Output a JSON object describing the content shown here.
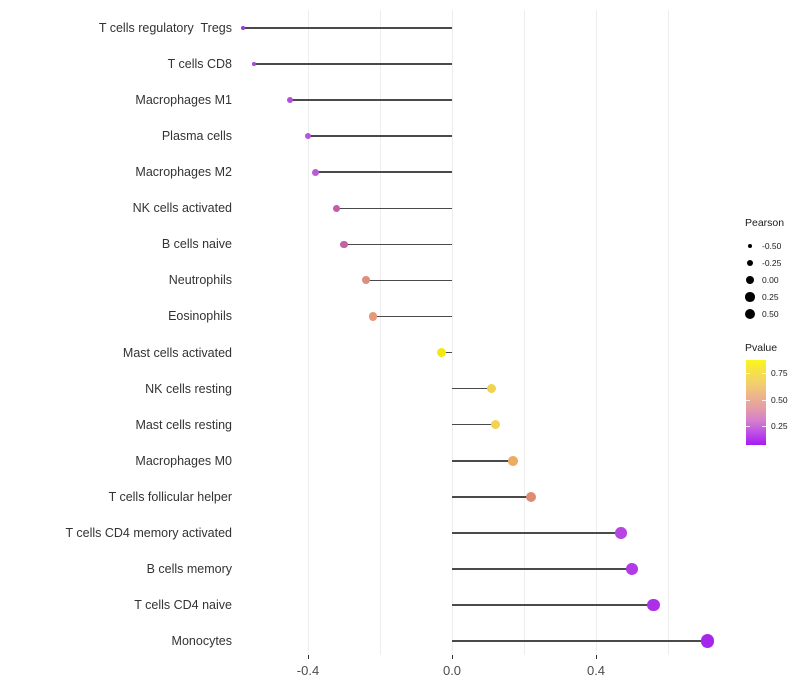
{
  "chart_data": {
    "type": "lollipop",
    "title": "",
    "xlabel": "",
    "ylabel": "",
    "xlim": [
      -0.62,
      0.78
    ],
    "grid": "vertical-light",
    "legend_position": "right",
    "x_axis": {
      "ticks": [
        {
          "v": -0.4,
          "label": "-0.4"
        },
        {
          "v": 0.0,
          "label": "0.0"
        },
        {
          "v": 0.4,
          "label": "0.4"
        }
      ],
      "gridlines": [
        -0.4,
        -0.2,
        0.0,
        0.2,
        0.4,
        0.6
      ]
    },
    "rows": [
      {
        "label": "T cells regulatory  Tregs",
        "pearson": -0.58,
        "color": "#9D3BD4",
        "radius": 2.0
      },
      {
        "label": "T cells CD8",
        "pearson": -0.55,
        "color": "#A847D6",
        "radius": 2.4
      },
      {
        "label": "Macrophages M1",
        "pearson": -0.45,
        "color": "#B051D8",
        "radius": 3.1
      },
      {
        "label": "Plasma cells",
        "pearson": -0.4,
        "color": "#B356DA",
        "radius": 3.3
      },
      {
        "label": "Macrophages M2",
        "pearson": -0.38,
        "color": "#B95BD4",
        "radius": 3.5
      },
      {
        "label": "NK cells activated",
        "pearson": -0.32,
        "color": "#C25BAE",
        "radius": 3.7
      },
      {
        "label": "B cells naive",
        "pearson": -0.3,
        "color": "#C562A6",
        "radius": 3.8
      },
      {
        "label": "Neutrophils",
        "pearson": -0.24,
        "color": "#DF8D7D",
        "radius": 4.0
      },
      {
        "label": "Eosinophils",
        "pearson": -0.22,
        "color": "#E79A77",
        "radius": 4.2
      },
      {
        "label": "Mast cells activated",
        "pearson": -0.03,
        "color": "#F2E90D",
        "radius": 4.5
      },
      {
        "label": "NK cells resting",
        "pearson": 0.11,
        "color": "#F1D34F",
        "radius": 4.7
      },
      {
        "label": "Mast cells resting",
        "pearson": 0.12,
        "color": "#F1D34F",
        "radius": 4.7
      },
      {
        "label": "Macrophages M0",
        "pearson": 0.17,
        "color": "#ECAC62",
        "radius": 4.9
      },
      {
        "label": "T cells follicular helper",
        "pearson": 0.22,
        "color": "#DC8C72",
        "radius": 5.1
      },
      {
        "label": "T cells CD4 memory activated",
        "pearson": 0.47,
        "color": "#B546E2",
        "radius": 5.8
      },
      {
        "label": "B cells memory",
        "pearson": 0.5,
        "color": "#B13BE6",
        "radius": 5.9
      },
      {
        "label": "T cells CD4 naive",
        "pearson": 0.56,
        "color": "#AC30EA",
        "radius": 6.2
      },
      {
        "label": "Monocytes",
        "pearson": 0.71,
        "color": "#A527EC",
        "radius": 6.8
      }
    ],
    "legend_pearson": {
      "title": "Pearson",
      "items": [
        {
          "label": "-0.50",
          "r": 2.2
        },
        {
          "label": "-0.25",
          "r": 3.1
        },
        {
          "label": "0.00",
          "r": 4.1
        },
        {
          "label": "0.25",
          "r": 4.7
        },
        {
          "label": "0.50",
          "r": 5.3
        }
      ]
    },
    "legend_pvalue": {
      "title": "Pvalue",
      "tick_labels": [
        "0.75",
        "0.50",
        "0.25"
      ],
      "gradient": [
        "#FBF51C",
        "#F6E149",
        "#F2CE71",
        "#ECB48C",
        "#E49CA8",
        "#D47FCE",
        "#BD4FE6",
        "#A51BF4"
      ]
    }
  }
}
